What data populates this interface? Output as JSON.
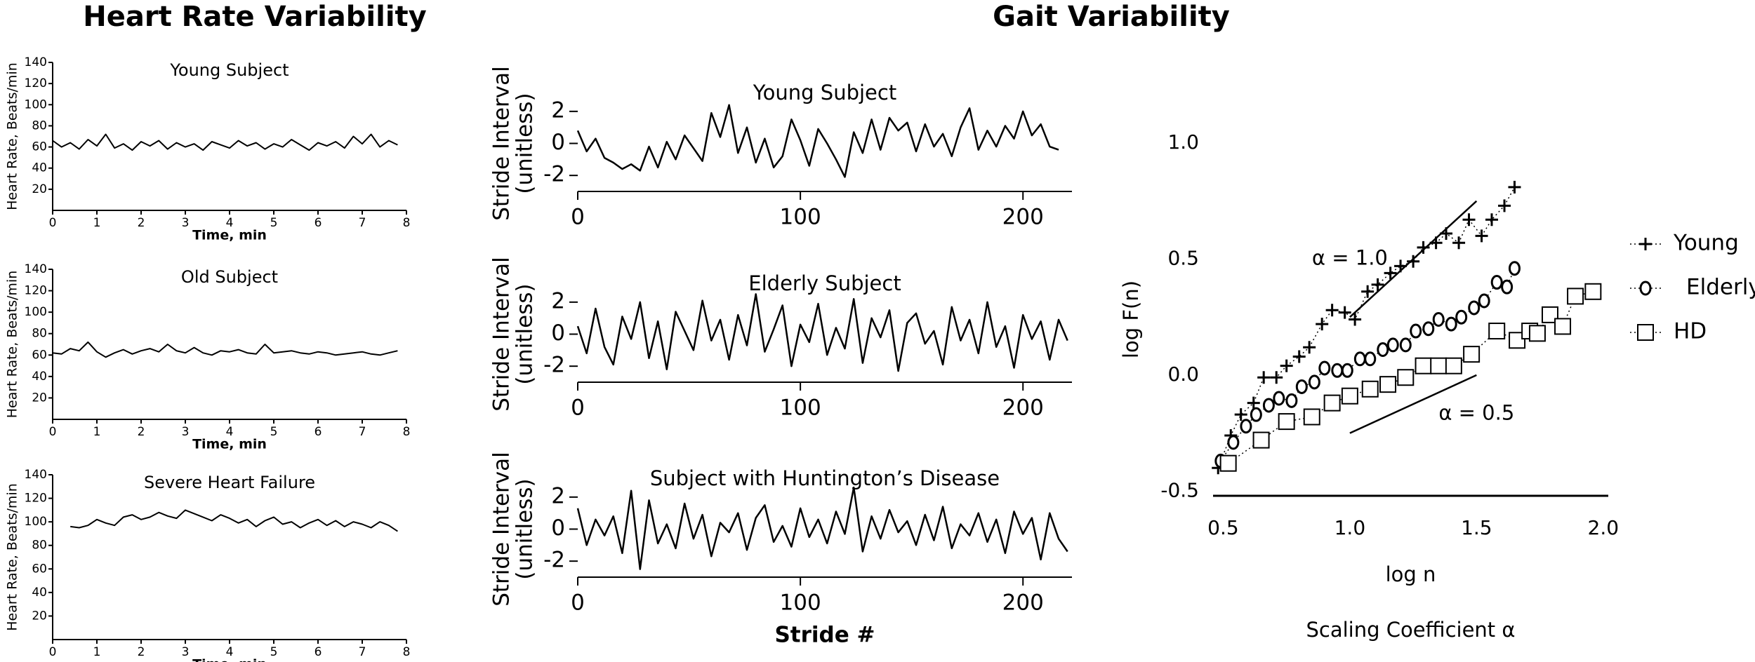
{
  "figure_titles": [
    "Heart Rate Variability",
    "Gait Variability"
  ],
  "chart_data": [
    {
      "type": "line",
      "title": "Young Subject",
      "ylabel": "Heart Rate, Beats/min",
      "xlabel": "Time, min",
      "xlim": [
        0,
        8
      ],
      "xticks": [
        0,
        1,
        2,
        3,
        4,
        5,
        6,
        7,
        8
      ],
      "ylim": [
        0,
        140
      ],
      "yticks": [
        20,
        40,
        60,
        80,
        100,
        120,
        140
      ],
      "series": [
        {
          "color": "#000000",
          "x": [
            0,
            0.2,
            0.4,
            0.6,
            0.8,
            1,
            1.2,
            1.4,
            1.6,
            1.8,
            2,
            2.2,
            2.4,
            2.6,
            2.8,
            3,
            3.2,
            3.4,
            3.6,
            3.8,
            4,
            4.2,
            4.4,
            4.6,
            4.8,
            5,
            5.2,
            5.4,
            5.6,
            5.8,
            6,
            6.2,
            6.4,
            6.6,
            6.8,
            7,
            7.2,
            7.4,
            7.6,
            7.8
          ],
          "values": [
            66,
            60,
            64,
            58,
            67,
            61,
            72,
            59,
            63,
            57,
            65,
            61,
            66,
            58,
            64,
            60,
            63,
            57,
            65,
            62,
            59,
            66,
            61,
            64,
            58,
            63,
            60,
            67,
            62,
            57,
            64,
            61,
            65,
            59,
            70,
            63,
            72,
            60,
            66,
            62
          ]
        }
      ]
    },
    {
      "type": "line",
      "title": "Old Subject",
      "ylabel": "Heart Rate, Beats/min",
      "xlabel": "Time, min",
      "xlim": [
        0,
        8
      ],
      "xticks": [
        0,
        1,
        2,
        3,
        4,
        5,
        6,
        7,
        8
      ],
      "ylim": [
        0,
        140
      ],
      "yticks": [
        20,
        40,
        60,
        80,
        100,
        120,
        140
      ],
      "series": [
        {
          "color": "#000000",
          "x": [
            0,
            0.2,
            0.4,
            0.6,
            0.8,
            1,
            1.2,
            1.4,
            1.6,
            1.8,
            2,
            2.2,
            2.4,
            2.6,
            2.8,
            3,
            3.2,
            3.4,
            3.6,
            3.8,
            4,
            4.2,
            4.4,
            4.6,
            4.8,
            5,
            5.2,
            5.4,
            5.6,
            5.8,
            6,
            6.2,
            6.4,
            6.6,
            6.8,
            7,
            7.2,
            7.4,
            7.6,
            7.8
          ],
          "values": [
            62,
            61,
            66,
            64,
            72,
            63,
            58,
            62,
            65,
            61,
            64,
            66,
            63,
            70,
            64,
            62,
            67,
            62,
            60,
            64,
            63,
            65,
            62,
            61,
            70,
            62,
            63,
            64,
            62,
            61,
            63,
            62,
            60,
            61,
            62,
            63,
            61,
            60,
            62,
            64
          ]
        }
      ]
    },
    {
      "type": "line",
      "title": "Severe Heart Failure",
      "ylabel": "Heart Rate, Beats/min",
      "xlabel": "Time, min",
      "xlim": [
        0,
        8
      ],
      "xticks": [
        0,
        1,
        2,
        3,
        4,
        5,
        6,
        7,
        8
      ],
      "ylim": [
        0,
        140
      ],
      "yticks": [
        20,
        40,
        60,
        80,
        100,
        120,
        140
      ],
      "series": [
        {
          "color": "#000000",
          "x": [
            0.4,
            0.6,
            0.8,
            1,
            1.2,
            1.4,
            1.6,
            1.8,
            2,
            2.2,
            2.4,
            2.6,
            2.8,
            3,
            3.2,
            3.4,
            3.6,
            3.8,
            4,
            4.2,
            4.4,
            4.6,
            4.8,
            5,
            5.2,
            5.4,
            5.6,
            5.8,
            6,
            6.2,
            6.4,
            6.6,
            6.8,
            7,
            7.2,
            7.4,
            7.6,
            7.8
          ],
          "values": [
            96,
            95,
            97,
            102,
            99,
            97,
            104,
            106,
            102,
            104,
            108,
            105,
            103,
            110,
            107,
            104,
            101,
            106,
            103,
            99,
            102,
            96,
            101,
            104,
            98,
            100,
            95,
            99,
            102,
            97,
            101,
            96,
            100,
            98,
            95,
            100,
            97,
            92
          ]
        }
      ]
    },
    {
      "type": "line",
      "title": "Young Subject",
      "ylabel": [
        "Stride Interval",
        "(unitless)"
      ],
      "xlim": [
        0,
        222
      ],
      "xticks": [
        0,
        100,
        200
      ],
      "ylim": [
        -3,
        3
      ],
      "yticks": [
        -2,
        0,
        2
      ],
      "series": [
        {
          "color": "#000000",
          "x": [
            0,
            4,
            8,
            12,
            16,
            20,
            24,
            28,
            32,
            36,
            40,
            44,
            48,
            52,
            56,
            60,
            64,
            68,
            72,
            76,
            80,
            84,
            88,
            92,
            96,
            100,
            104,
            108,
            112,
            116,
            120,
            124,
            128,
            132,
            136,
            140,
            144,
            148,
            152,
            156,
            160,
            164,
            168,
            172,
            176,
            180,
            184,
            188,
            192,
            196,
            200,
            204,
            208,
            212,
            216
          ],
          "values": [
            0.8,
            -0.5,
            0.3,
            -0.9,
            -1.2,
            -1.6,
            -1.3,
            -1.7,
            -0.2,
            -1.5,
            0.1,
            -1.0,
            0.5,
            -0.3,
            -1.1,
            1.9,
            0.4,
            2.4,
            -0.6,
            1.0,
            -1.2,
            0.3,
            -1.5,
            -0.8,
            1.5,
            0.2,
            -1.4,
            0.9,
            0.0,
            -1.0,
            -2.1,
            0.7,
            -0.6,
            1.5,
            -0.4,
            1.6,
            0.8,
            1.3,
            -0.5,
            1.2,
            -0.2,
            0.6,
            -0.8,
            1.0,
            2.2,
            -0.4,
            0.8,
            -0.2,
            1.1,
            0.3,
            2.0,
            0.5,
            1.2,
            -0.2,
            -0.4
          ]
        }
      ]
    },
    {
      "type": "line",
      "title": "Elderly Subject",
      "ylabel": [
        "Stride Interval",
        "(unitless)"
      ],
      "xlim": [
        0,
        222
      ],
      "xticks": [
        0,
        100,
        200
      ],
      "ylim": [
        -3,
        3
      ],
      "yticks": [
        -2,
        0,
        2
      ],
      "series": [
        {
          "color": "#000000",
          "x": [
            0,
            4,
            8,
            12,
            16,
            20,
            24,
            28,
            32,
            36,
            40,
            44,
            48,
            52,
            56,
            60,
            64,
            68,
            72,
            76,
            80,
            84,
            88,
            92,
            96,
            100,
            104,
            108,
            112,
            116,
            120,
            124,
            128,
            132,
            136,
            140,
            144,
            148,
            152,
            156,
            160,
            164,
            168,
            172,
            176,
            180,
            184,
            188,
            192,
            196,
            200,
            204,
            208,
            212,
            216,
            220
          ],
          "values": [
            0.5,
            -1.2,
            1.6,
            -0.8,
            -1.9,
            1.1,
            -0.3,
            2.0,
            -1.5,
            0.8,
            -2.2,
            1.4,
            0.2,
            -1.0,
            2.1,
            -0.4,
            0.9,
            -1.6,
            1.2,
            -0.7,
            2.5,
            -1.1,
            0.3,
            1.8,
            -2.0,
            0.6,
            -0.5,
            1.9,
            -1.3,
            0.4,
            -0.9,
            2.2,
            -1.8,
            1.0,
            -0.2,
            1.5,
            -2.3,
            0.7,
            1.3,
            -0.6,
            0.2,
            -1.9,
            1.7,
            -0.4,
            0.9,
            -1.2,
            2.0,
            -0.8,
            0.5,
            -2.1,
            1.2,
            -0.3,
            0.8,
            -1.6,
            0.9,
            -0.4
          ]
        }
      ]
    },
    {
      "type": "line",
      "title": "Subject with Huntington’s Disease",
      "ylabel": [
        "Stride Interval",
        "(unitless)"
      ],
      "xlabel": "Stride #",
      "xlim": [
        0,
        222
      ],
      "xticks": [
        0,
        100,
        200
      ],
      "ylim": [
        -3,
        3
      ],
      "yticks": [
        -2,
        0,
        2
      ],
      "series": [
        {
          "color": "#000000",
          "x": [
            0,
            4,
            8,
            12,
            16,
            20,
            24,
            28,
            32,
            36,
            40,
            44,
            48,
            52,
            56,
            60,
            64,
            68,
            72,
            76,
            80,
            84,
            88,
            92,
            96,
            100,
            104,
            108,
            112,
            116,
            120,
            124,
            128,
            132,
            136,
            140,
            144,
            148,
            152,
            156,
            160,
            164,
            168,
            172,
            176,
            180,
            184,
            188,
            192,
            196,
            200,
            204,
            208,
            212,
            216,
            220
          ],
          "values": [
            1.3,
            -1.0,
            0.6,
            -0.4,
            0.8,
            -1.5,
            2.4,
            -2.5,
            1.8,
            -0.9,
            0.3,
            -1.2,
            1.6,
            -0.6,
            0.9,
            -1.7,
            0.4,
            -0.2,
            1.0,
            -1.3,
            0.7,
            1.5,
            -0.8,
            0.2,
            -1.1,
            1.3,
            -0.5,
            0.6,
            -0.9,
            1.1,
            -0.3,
            2.6,
            -1.4,
            0.8,
            -0.6,
            1.2,
            -0.2,
            0.5,
            -1.0,
            0.9,
            -0.7,
            1.4,
            -1.2,
            0.3,
            -0.4,
            1.0,
            -0.8,
            0.6,
            -1.5,
            1.1,
            -0.3,
            0.7,
            -1.9,
            1.0,
            -0.6,
            -1.4
          ]
        }
      ]
    },
    {
      "type": "scatter",
      "xlabel": "log n",
      "ylabel": "log F(n)",
      "caption": "Scaling Coefficient α",
      "xlim": [
        0.46,
        2.02
      ],
      "xticks": [
        0.5,
        {
          "value": 1,
          "label": "1.0"
        },
        1.5,
        {
          "value": 2,
          "label": "2.0"
        }
      ],
      "ylim": [
        -0.52,
        1.0
      ],
      "yticks": [
        -0.5,
        {
          "value": 0,
          "label": "0.0"
        },
        0.5,
        {
          "value": 1,
          "label": "1.0"
        }
      ],
      "legend": "right",
      "line_style": "dotted",
      "series": [
        {
          "name": "Young",
          "marker": "plus",
          "color": "#000000",
          "x": [
            0.48,
            0.53,
            0.57,
            0.62,
            0.66,
            0.71,
            0.75,
            0.8,
            0.84,
            0.89,
            0.93,
            0.98,
            1.02,
            1.07,
            1.11,
            1.16,
            1.2,
            1.25,
            1.29,
            1.34,
            1.38,
            1.43,
            1.47,
            1.52,
            1.56,
            1.61,
            1.65
          ],
          "values": [
            -0.4,
            -0.26,
            -0.17,
            -0.12,
            -0.01,
            -0.01,
            0.04,
            0.08,
            0.12,
            0.22,
            0.28,
            0.27,
            0.24,
            0.36,
            0.39,
            0.44,
            0.47,
            0.49,
            0.55,
            0.57,
            0.61,
            0.57,
            0.67,
            0.6,
            0.67,
            0.73,
            0.81
          ]
        },
        {
          "name": "Elderly",
          "marker": "circle",
          "color": "#000000",
          "x": [
            0.49,
            0.54,
            0.59,
            0.63,
            0.68,
            0.72,
            0.77,
            0.81,
            0.86,
            0.9,
            0.95,
            0.99,
            1.04,
            1.08,
            1.13,
            1.17,
            1.22,
            1.26,
            1.31,
            1.35,
            1.4,
            1.44,
            1.49,
            1.53,
            1.58,
            1.62,
            1.65
          ],
          "values": [
            -0.37,
            -0.29,
            -0.22,
            -0.17,
            -0.13,
            -0.1,
            -0.11,
            -0.05,
            -0.03,
            0.03,
            0.02,
            0.02,
            0.07,
            0.07,
            0.11,
            0.13,
            0.13,
            0.19,
            0.2,
            0.24,
            0.22,
            0.25,
            0.29,
            0.32,
            0.4,
            0.38,
            0.46
          ]
        },
        {
          "name": "HD",
          "marker": "square",
          "color": "#000000",
          "x": [
            0.52,
            0.65,
            0.75,
            0.85,
            0.93,
            1.0,
            1.08,
            1.15,
            1.22,
            1.29,
            1.35,
            1.41,
            1.48,
            1.58,
            1.66,
            1.71,
            1.74,
            1.79,
            1.84,
            1.89,
            1.96
          ],
          "values": [
            -0.38,
            -0.28,
            -0.2,
            -0.18,
            -0.12,
            -0.09,
            -0.06,
            -0.04,
            -0.01,
            0.04,
            0.04,
            0.04,
            0.09,
            0.19,
            0.15,
            0.19,
            0.18,
            0.26,
            0.21,
            0.34,
            0.36
          ]
        }
      ],
      "reference_lines": [
        {
          "label": "α = 1.0",
          "x": [
            1.0,
            1.5
          ],
          "y": [
            0.25,
            0.75
          ]
        },
        {
          "label": "α = 0.5",
          "x": [
            1.0,
            1.5
          ],
          "y": [
            -0.25,
            0.0
          ]
        }
      ]
    }
  ]
}
